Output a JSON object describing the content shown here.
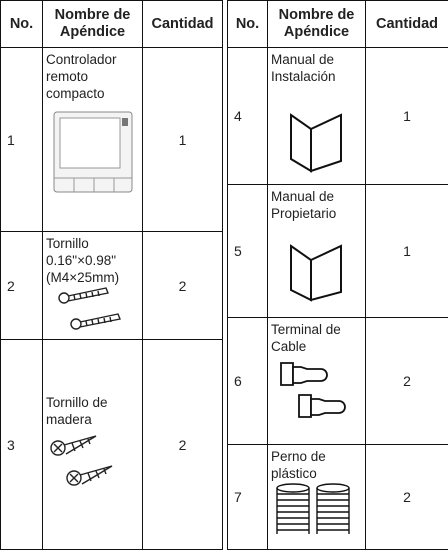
{
  "left_table": {
    "headers": [
      "No.",
      "Nombre de Apéndice",
      "Cantidad"
    ],
    "rows": [
      {
        "no": "1",
        "name_lines": [
          "Controlador",
          "remoto",
          "compacto"
        ],
        "quantity": "1"
      },
      {
        "no": "2",
        "name_lines": [
          "Tornillo",
          "0.16\"×0.98\"",
          "(M4×25mm)"
        ],
        "quantity": "2"
      },
      {
        "no": "3",
        "name_lines": [
          "Tornillo de",
          "madera"
        ],
        "quantity": "2"
      }
    ]
  },
  "right_table": {
    "headers": [
      "No.",
      "Nombre de Apéndice",
      "Cantidad"
    ],
    "rows": [
      {
        "no": "4",
        "name_lines": [
          "Manual de",
          "Instalación"
        ],
        "quantity": "1"
      },
      {
        "no": "5",
        "name_lines": [
          "Manual de",
          "Propietario"
        ],
        "quantity": "1"
      },
      {
        "no": "6",
        "name_lines": [
          "Terminal de",
          "Cable"
        ],
        "quantity": "2"
      },
      {
        "no": "7",
        "name_lines": [
          "Perno de",
          "plástico"
        ],
        "quantity": "2"
      }
    ]
  }
}
